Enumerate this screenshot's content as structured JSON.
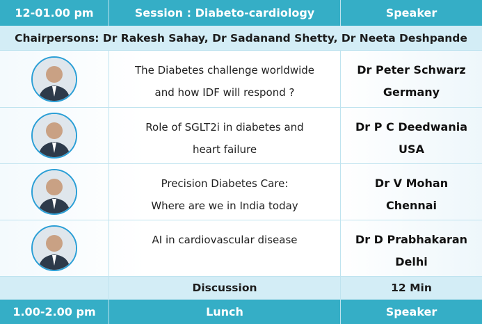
{
  "header": {
    "time": "12-01.00 pm",
    "session": "Session : Diabeto-cardiology",
    "speaker": "Speaker"
  },
  "chairpersons": "Chairpersons: Dr Rakesh Sahay, Dr Sadanand Shetty, Dr Neeta Deshpande",
  "talks": [
    {
      "topic": [
        "The  Diabetes challenge worldwide",
        "and how IDF will respond ?"
      ],
      "speaker": "Dr Peter Schwarz",
      "place": "Germany"
    },
    {
      "topic": [
        "Role of SGLT2i in diabetes and",
        "heart failure"
      ],
      "speaker": "Dr P C Deedwania",
      "place": "USA"
    },
    {
      "topic": [
        "Precision Diabetes Care:",
        "Where are we in India today"
      ],
      "speaker": "Dr V Mohan",
      "place": "Chennai"
    },
    {
      "topic": [
        "AI in cardiovascular disease"
      ],
      "speaker": "Dr D Prabhakaran",
      "place": "Delhi"
    }
  ],
  "discussion": {
    "label": "Discussion",
    "duration": "12 Min"
  },
  "lunch": {
    "time": "1.00-2.00 pm",
    "label": "Lunch",
    "speaker": "Speaker"
  }
}
